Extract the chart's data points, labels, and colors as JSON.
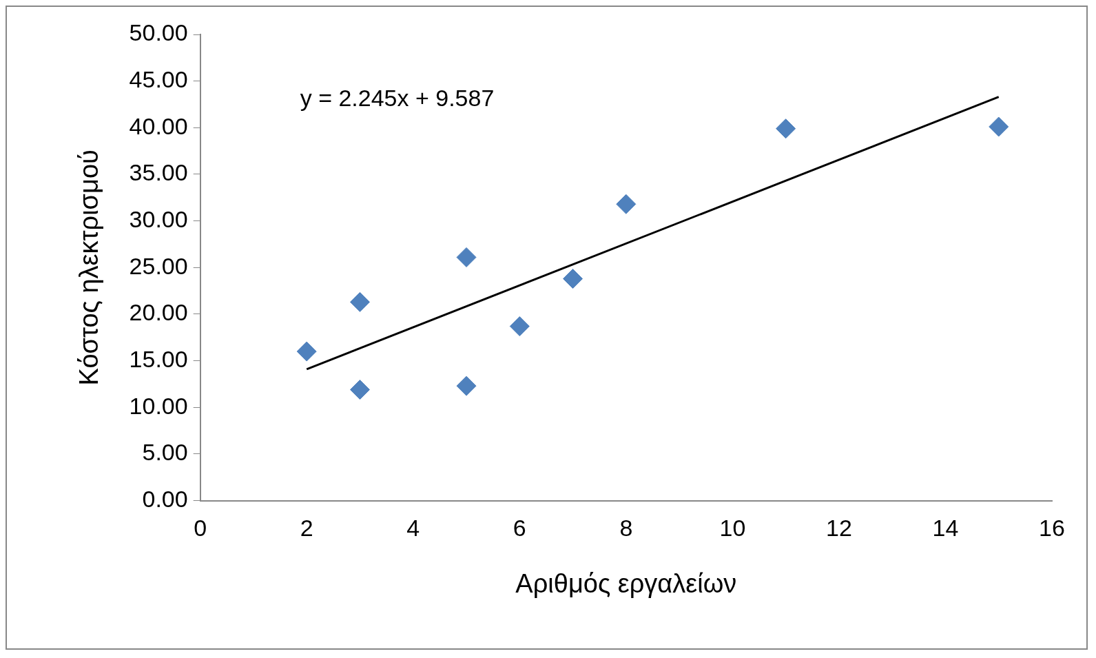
{
  "chart_data": {
    "type": "scatter",
    "xlabel": "Αριθμός εργαλείων",
    "ylabel": "Κόστος ηλεκτρισμού",
    "annotations": [
      "y = 2.245x + 9.587"
    ],
    "series": [
      {
        "type": "scatter",
        "color": "#4f81bd",
        "marker": "diamond",
        "x": [
          2,
          3,
          3,
          5,
          5,
          6,
          7,
          8,
          11,
          15
        ],
        "values": [
          16.0,
          21.3,
          11.9,
          26.1,
          12.3,
          18.7,
          23.8,
          31.8,
          39.9,
          40.1
        ]
      },
      {
        "type": "line",
        "color": "#000000",
        "marker": "none",
        "line_style": "solid",
        "x": [
          2,
          15
        ],
        "values": [
          14.1,
          43.3
        ]
      }
    ],
    "xlim": [
      0,
      16
    ],
    "xticks": [
      0,
      2,
      4,
      6,
      8,
      10,
      12,
      14,
      16
    ],
    "ylim": [
      0,
      50
    ],
    "yticks": [
      {
        "value": 0,
        "label": "0.00"
      },
      {
        "value": 5,
        "label": "5.00"
      },
      {
        "value": 10,
        "label": "10.00"
      },
      {
        "value": 15,
        "label": "15.00"
      },
      {
        "value": 20,
        "label": "20.00"
      },
      {
        "value": 25,
        "label": "25.00"
      },
      {
        "value": 30,
        "label": "30.00"
      },
      {
        "value": 35,
        "label": "35.00"
      },
      {
        "value": 40,
        "label": "40.00"
      },
      {
        "value": 45,
        "label": "45.00"
      },
      {
        "value": 50,
        "label": "50.00"
      }
    ],
    "grid": false,
    "legend": false
  }
}
